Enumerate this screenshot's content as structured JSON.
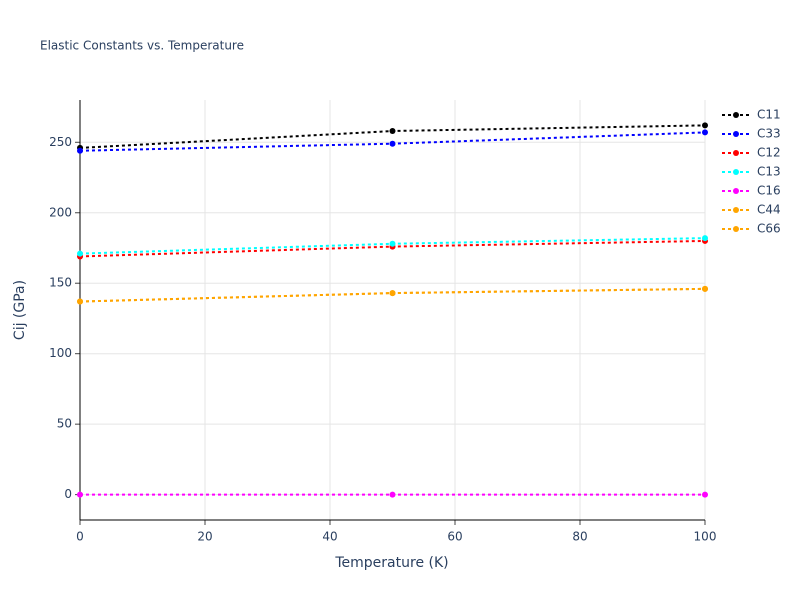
{
  "chart_data": {
    "type": "line",
    "title": "Elastic Constants vs. Temperature",
    "x_label": "Temperature (K)",
    "y_label": "Cij (GPa)",
    "x": [
      0,
      50,
      100
    ],
    "series": [
      {
        "name": "C11",
        "color": "#000000",
        "values": [
          246,
          258,
          262
        ]
      },
      {
        "name": "C33",
        "color": "#0000ff",
        "values": [
          244,
          249,
          257
        ]
      },
      {
        "name": "C12",
        "color": "#ff0000",
        "values": [
          169,
          176,
          180
        ]
      },
      {
        "name": "C13",
        "color": "#00ffff",
        "values": [
          171,
          178,
          182
        ]
      },
      {
        "name": "C16",
        "color": "#ff00ff",
        "values": [
          0,
          0,
          0
        ]
      },
      {
        "name": "C44",
        "color": "#ffa500",
        "values": [
          137,
          143,
          146
        ]
      },
      {
        "name": "C66",
        "color": "#ffa500",
        "values": [
          137,
          143,
          146
        ]
      }
    ],
    "xlim": [
      0,
      100
    ],
    "xticks": [
      0,
      20,
      40,
      60,
      80,
      100
    ],
    "ylim": [
      -18,
      280
    ],
    "yticks": [
      0,
      50,
      100,
      150,
      200,
      250
    ],
    "grid": true,
    "legend": "right"
  }
}
